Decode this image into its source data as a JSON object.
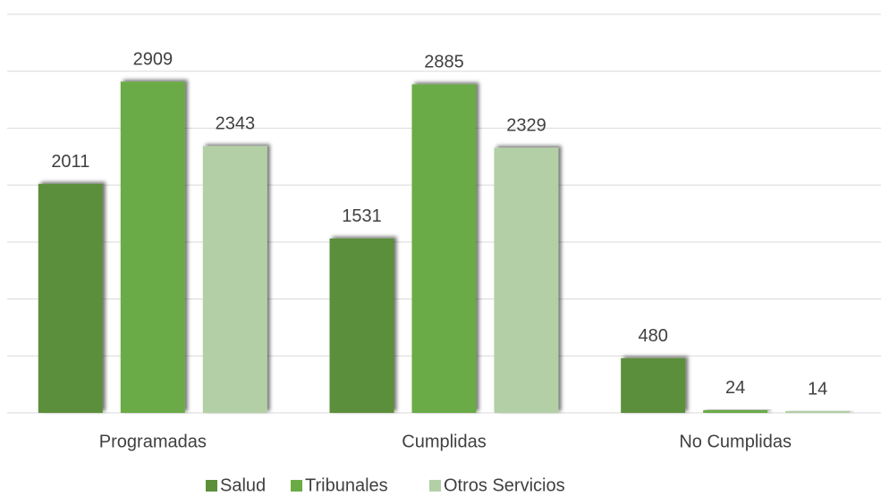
{
  "chart_data": {
    "type": "bar",
    "categories": [
      "Programadas",
      "Cumplidas",
      "No Cumplidas"
    ],
    "series": [
      {
        "name": "Salud",
        "color": "#5b8f3a",
        "values": [
          2011,
          1531,
          480
        ]
      },
      {
        "name": "Tribunales",
        "color": "#6bab46",
        "values": [
          2909,
          2885,
          24
        ]
      },
      {
        "name": "Otros Servicios",
        "color": "#b3cfa6",
        "values": [
          2343,
          2329,
          14
        ]
      }
    ],
    "ylim": [
      0,
      3500
    ],
    "yticks": [
      0,
      500,
      1000,
      1500,
      2000,
      2500,
      3000,
      3500
    ],
    "grid": true,
    "legend": "bottom"
  }
}
